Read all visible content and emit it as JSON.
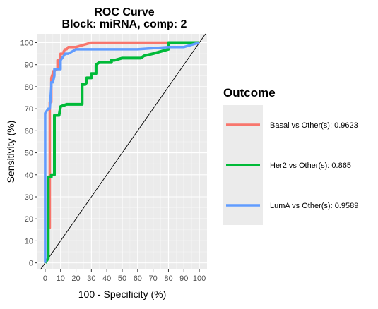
{
  "chart_data": {
    "type": "line",
    "title_line1": "ROC Curve",
    "title_line2": "Block: miRNA, comp: 2",
    "xlabel": "100 - Specificity (%)",
    "ylabel": "Sensitivity (%)",
    "xlim": [
      -5,
      105
    ],
    "ylim": [
      -3,
      104
    ],
    "xticks": [
      0,
      10,
      20,
      30,
      40,
      50,
      60,
      70,
      80,
      90,
      100
    ],
    "yticks": [
      0,
      10,
      20,
      30,
      40,
      50,
      60,
      70,
      80,
      90,
      100
    ],
    "grid": true,
    "legend_title": "Outcome",
    "legend_position": "right",
    "diagonal_reference": true,
    "series": [
      {
        "name": "Basal vs Other(s): 0.9623",
        "color": "#F8766D",
        "x": [
          0,
          2,
          2,
          3,
          3,
          4,
          4,
          5,
          5,
          6,
          7,
          8,
          8,
          10,
          10,
          12,
          12,
          13,
          14,
          15,
          16,
          18,
          20,
          25,
          30,
          35,
          40,
          60,
          80,
          100
        ],
        "y": [
          0,
          2,
          16,
          16,
          73,
          73,
          84,
          86,
          87,
          87,
          88,
          88,
          92,
          92,
          95,
          95,
          96,
          97,
          97,
          98,
          98,
          98,
          98,
          99,
          100,
          100,
          100,
          100,
          100,
          100
        ]
      },
      {
        "name": "Her2 vs Other(s): 0.865",
        "color": "#00BA38",
        "x": [
          0,
          2,
          2,
          4,
          4,
          6,
          6,
          9,
          10,
          14,
          24,
          24,
          26,
          27,
          27,
          30,
          30,
          33,
          33,
          35,
          43,
          43,
          45,
          50,
          62,
          64,
          70,
          75,
          80,
          80,
          90,
          100
        ],
        "y": [
          0,
          2,
          39,
          39,
          40,
          40,
          67,
          67,
          71,
          72,
          72,
          81,
          81,
          82,
          84,
          84,
          86,
          86,
          90,
          91,
          91,
          92,
          92,
          93,
          93,
          94,
          95,
          96,
          97,
          100,
          100,
          100
        ],
        "line_width": "thick"
      },
      {
        "name": "LumA vs Other(s): 0.9589",
        "color": "#619CFF",
        "x": [
          0,
          0,
          2,
          3,
          4,
          4,
          5,
          6,
          6,
          8,
          10,
          10,
          12,
          13,
          15,
          20,
          30,
          40,
          50,
          60,
          80,
          90,
          95,
          100
        ],
        "y": [
          0,
          68,
          70,
          70,
          80,
          82,
          82,
          85,
          88,
          88,
          88,
          92,
          94,
          95,
          95,
          97,
          97,
          97,
          97,
          97,
          98,
          98,
          99,
          100
        ]
      }
    ]
  }
}
